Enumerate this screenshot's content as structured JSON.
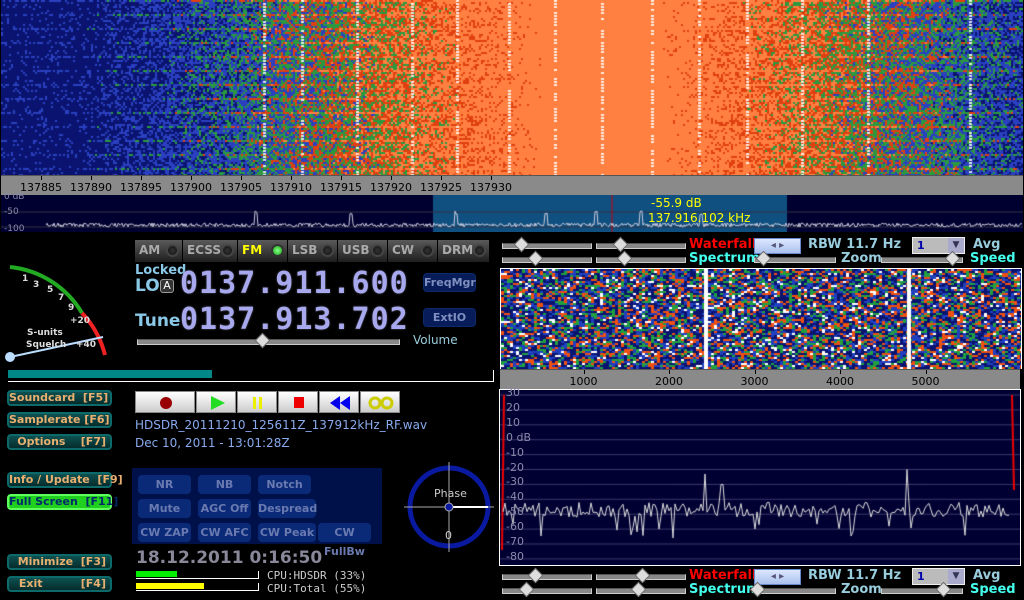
{
  "main_waterfall": {
    "freq_ticks": [
      "137885",
      "137890",
      "137895",
      "137900",
      "137905",
      "137910",
      "137915",
      "137920",
      "137925",
      "137930"
    ],
    "db_labels": [
      "0 dB",
      "-50",
      "-100"
    ],
    "cursor": {
      "level": "-55.9 dB",
      "freq": "137.916.102 kHz"
    }
  },
  "modes": [
    {
      "label": "AM",
      "active": false
    },
    {
      "label": "ECSS",
      "active": false
    },
    {
      "label": "FM",
      "active": true
    },
    {
      "label": "LSB",
      "active": false
    },
    {
      "label": "USB",
      "active": false
    },
    {
      "label": "CW",
      "active": false
    },
    {
      "label": "DRM",
      "active": false
    }
  ],
  "smeter": {
    "scale": [
      "1",
      "3",
      "5",
      "7",
      "9",
      "+20",
      "+40"
    ],
    "label1": "S-units",
    "label2": "Squelch"
  },
  "lo": {
    "locked_label": "Locked",
    "label": "LO",
    "badge": "A",
    "value": "0137.911.600"
  },
  "tune": {
    "label": "Tune",
    "value": "0137.913.702"
  },
  "buttons": {
    "freqmgr": "FreqMgr",
    "extio": "ExtIO",
    "volume": "Volume"
  },
  "volume_level": 0.47,
  "progress": 0.42,
  "side_buttons": [
    "Soundcard  [F5]",
    "Samplerate [F6]",
    "Options    [F7]",
    "Info / Update  [F9]",
    "Full Screen  [F11]",
    "Minimize  [F3]",
    "Exit          [F4]"
  ],
  "transport": [
    "record-icon",
    "play-icon",
    "pause-icon",
    "stop-icon",
    "rewind-icon",
    "loop-icon"
  ],
  "file": {
    "name": "HDSDR_20111210_125611Z_137912kHz_RF.wav",
    "date": "Dec 10, 2011 - 13:01:28Z"
  },
  "dsp": [
    "NR",
    "NB",
    "Notch",
    "Mute",
    "AGC Off",
    "Despread",
    "CW ZAP",
    "CW AFC",
    "CW Peak",
    "CW FullBw"
  ],
  "phase": {
    "label": "Phase",
    "value": "0"
  },
  "clock": "18.12.2011 0:16:50",
  "cpu": {
    "hdsdr_label": "CPU:HDSDR (33%)",
    "hdsdr": 0.33,
    "total_label": "CPU:Total (55%)",
    "total": 0.55
  },
  "af_controls": {
    "waterfall": "Waterfall",
    "spectrum": "Spectrum",
    "rbw": "RBW 11.7 Hz",
    "avg_value": "1",
    "avg": "Avg",
    "zoom": "Zoom",
    "speed": "Speed"
  },
  "af_axis": [
    "1000",
    "2000",
    "3000",
    "4000",
    "5000"
  ],
  "af_db": [
    "30",
    "20",
    "10",
    "0 dB",
    "-10",
    "-20",
    "-30",
    "-40",
    "-50",
    "-60",
    "-70",
    "-80"
  ],
  "colors": {
    "accent": "#ff0000",
    "cyan": "#44eeee",
    "panel": "#000033"
  }
}
